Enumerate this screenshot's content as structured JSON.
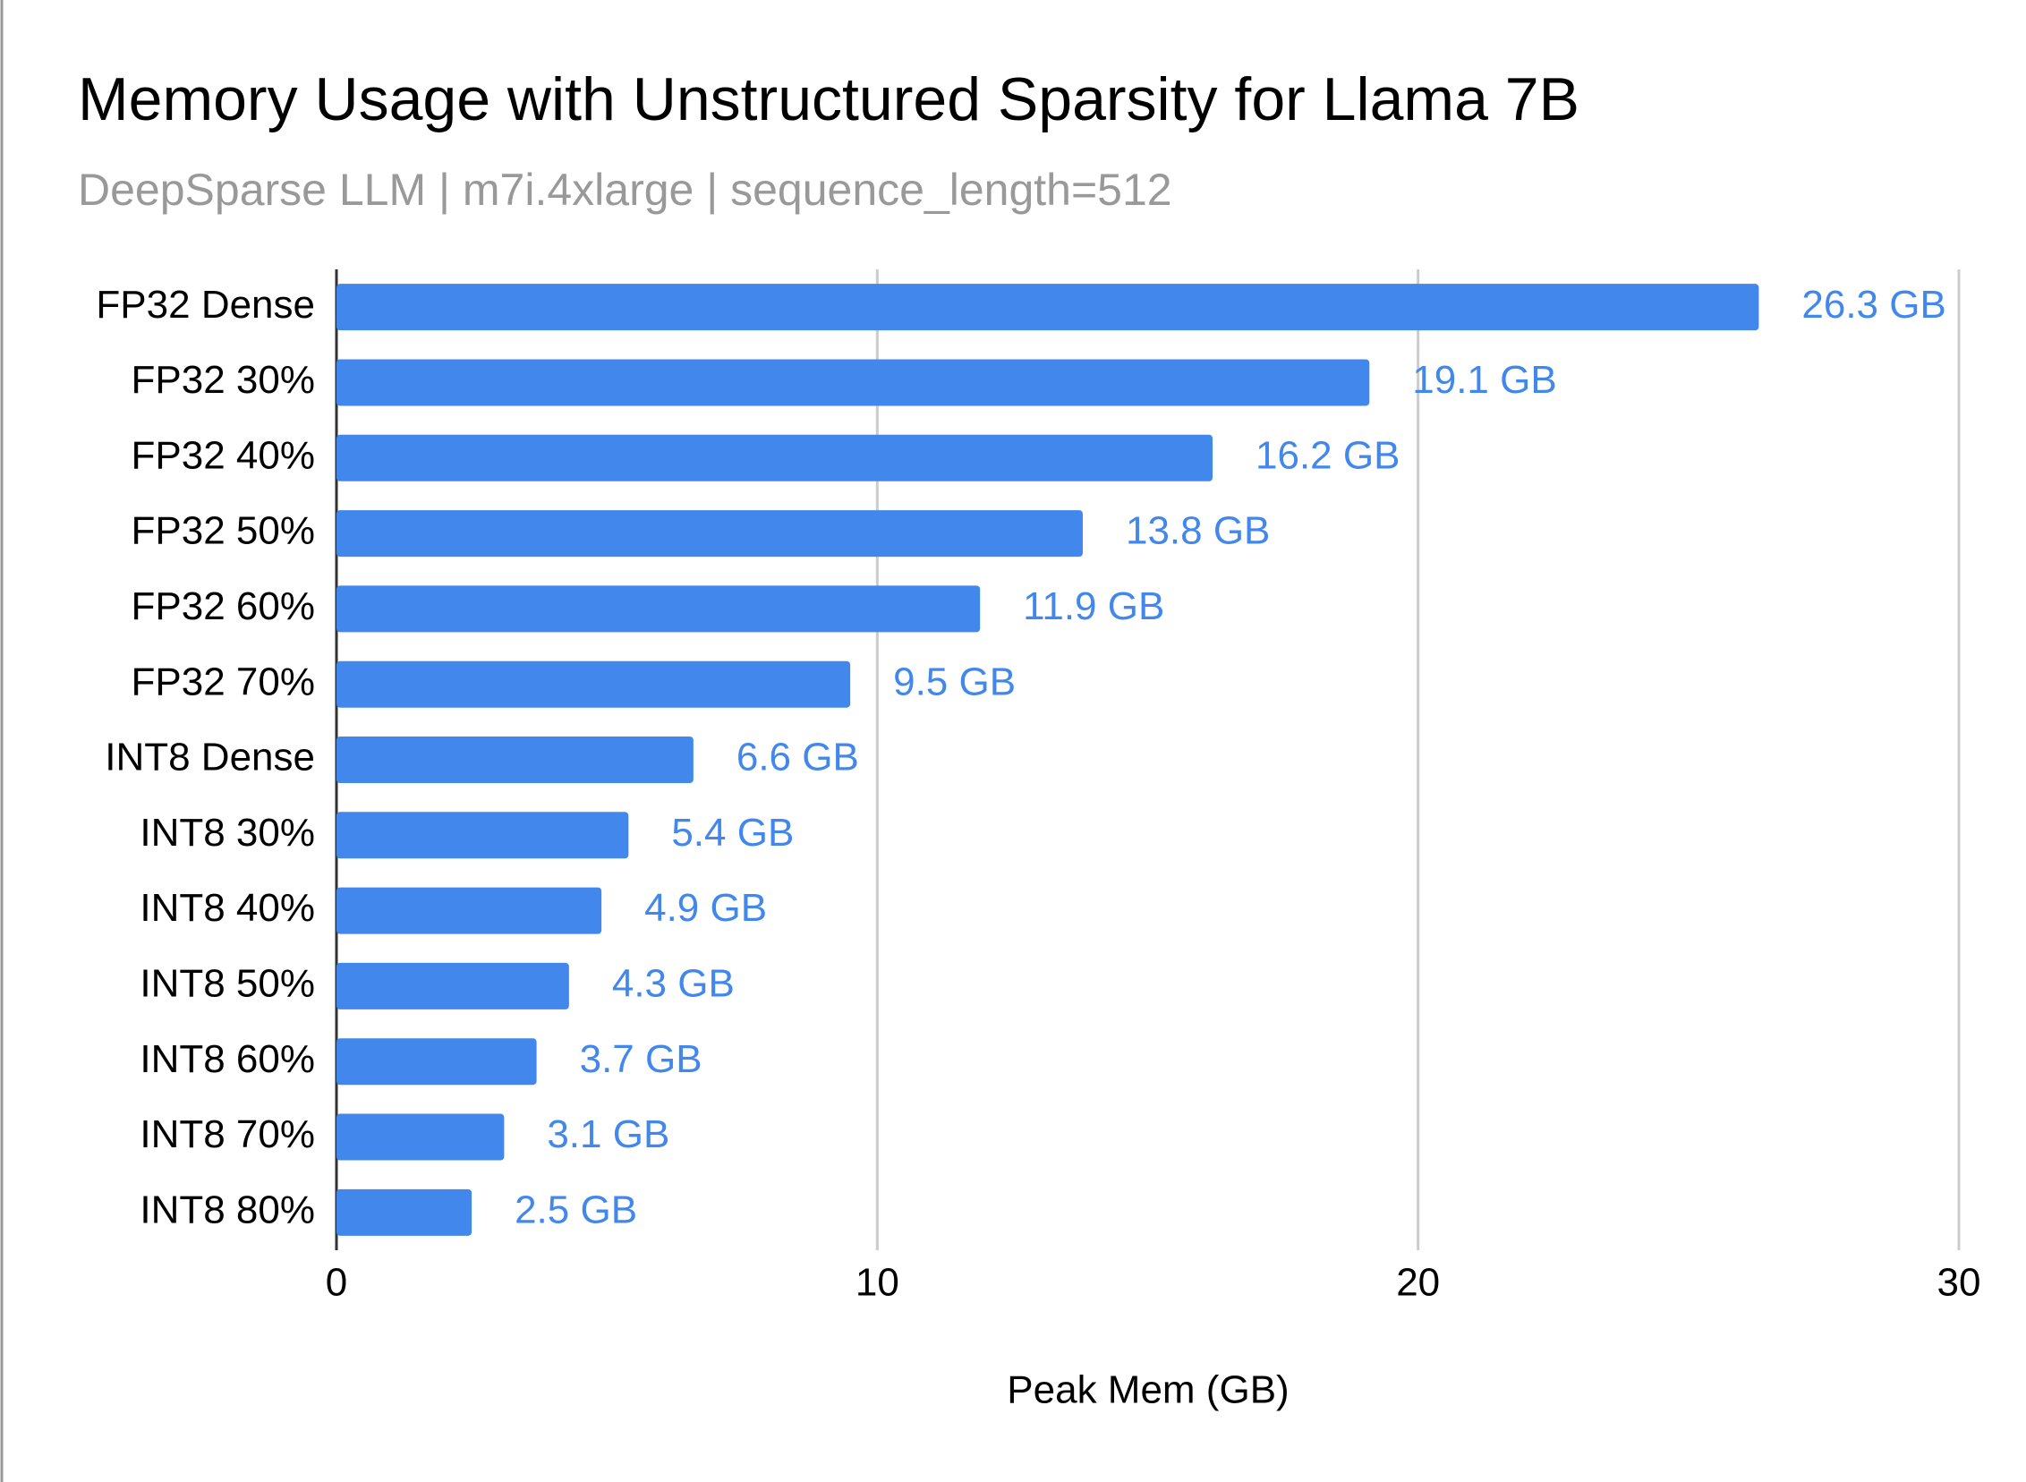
{
  "chart_data": {
    "type": "bar",
    "orientation": "horizontal",
    "title": "Memory Usage with Unstructured Sparsity for Llama 7B",
    "subtitle": "DeepSparse LLM | m7i.4xlarge | sequence_length=512",
    "x_label": "Peak Mem (GB)",
    "categories": [
      "FP32 Dense",
      "FP32 30%",
      "FP32 40%",
      "FP32 50%",
      "FP32 60%",
      "FP32 70%",
      "INT8 Dense",
      "INT8 30%",
      "INT8 40%",
      "INT8 50%",
      "INT8 60%",
      "INT8 70%",
      "INT8 80%"
    ],
    "values": [
      26.3,
      19.1,
      16.2,
      13.8,
      11.9,
      9.5,
      6.6,
      5.4,
      4.9,
      4.3,
      3.7,
      3.1,
      2.5
    ],
    "value_labels": [
      "26.3 GB",
      "19.1 GB",
      "16.2 GB",
      "13.8 GB",
      "11.9 GB",
      "9.5 GB",
      "6.6 GB",
      "5.4 GB",
      "4.9 GB",
      "4.3 GB",
      "3.7 GB",
      "3.1 GB",
      "2.5 GB"
    ],
    "color": "#4187ec",
    "xlim": [
      0,
      30
    ],
    "xticks": [
      0,
      10,
      20,
      30
    ],
    "grid": true
  }
}
